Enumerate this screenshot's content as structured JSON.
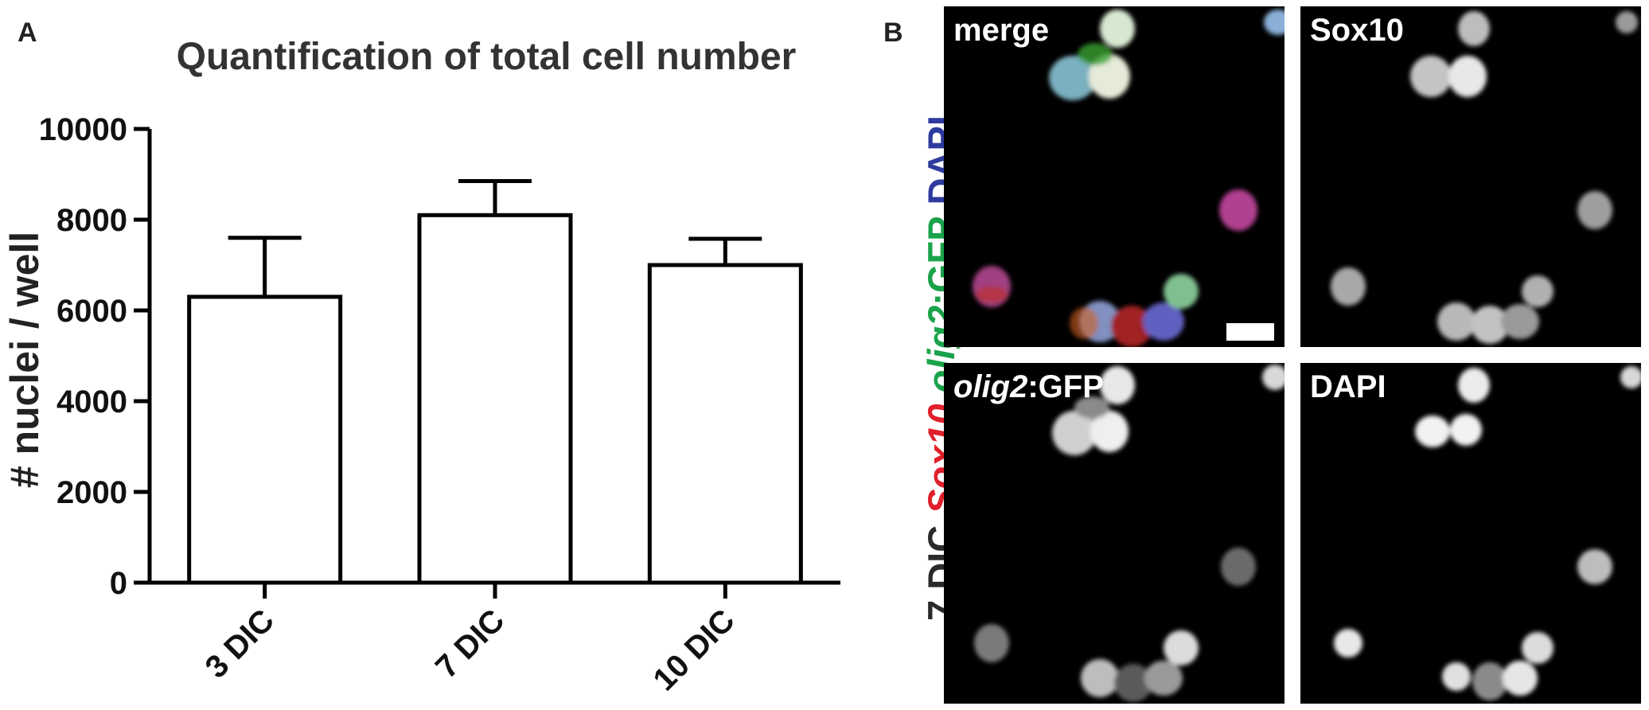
{
  "panel_a_letter": "A",
  "panel_b_letter": "B",
  "chart_data": {
    "type": "bar",
    "title": "Quantification of total cell number",
    "xlabel": "",
    "ylabel": "# nuclei / well",
    "categories": [
      "3 DIC",
      "7 DIC",
      "10 DIC"
    ],
    "values": [
      6300,
      8100,
      7000
    ],
    "error": [
      1300,
      750,
      580
    ],
    "yticks": [
      0,
      2000,
      4000,
      6000,
      8000,
      10000
    ],
    "ylim": [
      0,
      10000
    ],
    "grid": false,
    "colors": {
      "bar_fill": "#ffffff",
      "bar_stroke": "#000000"
    }
  },
  "side_label": {
    "part1": "7 DIC",
    "part2": "Sox10",
    "part3": "olig2",
    "part4": ":GFP",
    "part5": "DAPI",
    "colors": {
      "dark": "#2a2a2a",
      "sox10": "#e0202a",
      "olig2": "#1aa34a",
      "dapi": "#2e3a9e"
    }
  },
  "micrographs": {
    "merge_label": "merge",
    "sox10_label": "Sox10",
    "olig2_label_italic": "olig2",
    "olig2_label_rest": ":GFP",
    "dapi_label": "DAPI"
  }
}
